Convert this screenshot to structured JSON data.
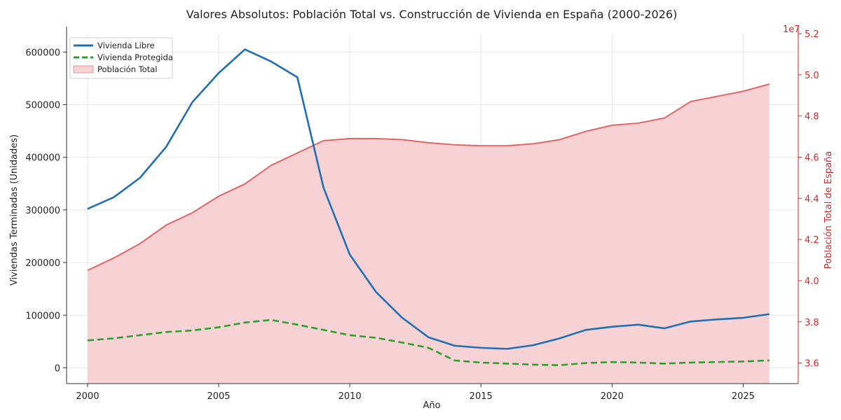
{
  "chart_data": {
    "type": "line",
    "title": "Valores Absolutos: Población Total vs. Construcción de Vivienda en España (2000-2026)",
    "xlabel": "Año",
    "ylabel": "Viviendas Terminadas (Unidades)",
    "y2label": "Población Total de España",
    "y2_offset_label": "1e7",
    "xlim": [
      1999.2,
      2027.1
    ],
    "ylim": [
      -30000,
      635000
    ],
    "y2lim": [
      35000000.0,
      52000000.0
    ],
    "xticks": [
      2000,
      2005,
      2010,
      2015,
      2020,
      2025
    ],
    "yticks": [
      0,
      100000,
      200000,
      300000,
      400000,
      500000,
      600000
    ],
    "y2ticks": [
      3.6,
      3.8,
      4.0,
      4.2,
      4.4,
      4.6,
      4.8,
      5.0,
      5.2
    ],
    "grid": true,
    "legend_position": "top-left",
    "x": [
      2000,
      2001,
      2002,
      2003,
      2004,
      2005,
      2006,
      2007,
      2008,
      2009,
      2010,
      2011,
      2012,
      2013,
      2014,
      2015,
      2016,
      2017,
      2018,
      2019,
      2020,
      2021,
      2022,
      2023,
      2024,
      2025,
      2026
    ],
    "series": [
      {
        "name": "Vivienda Libre",
        "axis": "left",
        "style": "solid",
        "color": "#1f6fb2",
        "values": [
          302000,
          324000,
          361000,
          420000,
          505000,
          560000,
          605000,
          582000,
          552000,
          342000,
          215000,
          144000,
          95000,
          58000,
          42000,
          38000,
          36000,
          43000,
          56000,
          72000,
          78000,
          82000,
          75000,
          88000,
          92000,
          95000,
          102000
        ]
      },
      {
        "name": "Vivienda Protegida",
        "axis": "left",
        "style": "dashed",
        "color": "#2ca02c",
        "values": [
          52000,
          56000,
          62000,
          68000,
          71000,
          77000,
          86000,
          91000,
          82000,
          72000,
          62000,
          57000,
          48000,
          38000,
          14000,
          10000,
          8000,
          6000,
          5000,
          9000,
          11000,
          10000,
          8000,
          10000,
          11000,
          12000,
          14000
        ]
      },
      {
        "name": "Población Total",
        "axis": "right",
        "style": "area",
        "color": "#e06666",
        "fill": "#f7d2d5",
        "values": [
          40500000,
          41100000,
          41800000,
          42700000,
          43300000,
          44100000,
          44700000,
          45600000,
          46200000,
          46800000,
          46900000,
          46900000,
          46850000,
          46700000,
          46600000,
          46550000,
          46550000,
          46650000,
          46850000,
          47250000,
          47550000,
          47650000,
          47900000,
          48700000,
          48950000,
          49200000,
          49550000
        ]
      }
    ]
  }
}
